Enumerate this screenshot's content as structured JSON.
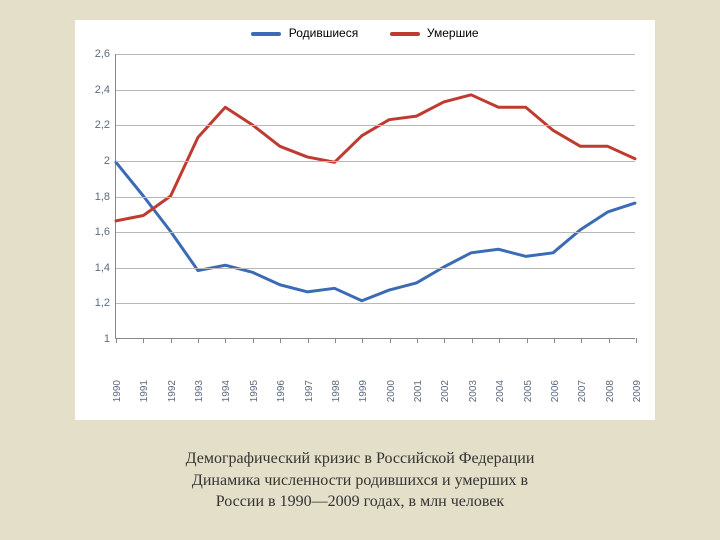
{
  "background_color": "#e3dfc9",
  "chart": {
    "type": "line",
    "plot_bg": "#ffffff",
    "grid_color": "#b8b8b8",
    "axis_color": "#888888",
    "tick_font_color": "#5a6a80",
    "tick_fontsize": 11,
    "ylim": [
      1.0,
      2.6
    ],
    "ytick_step": 0.2,
    "yticks": [
      "1",
      "1,2",
      "1,4",
      "1,6",
      "1,8",
      "2",
      "2,2",
      "2,4",
      "2,6"
    ],
    "categories": [
      "1990",
      "1991",
      "1992",
      "1993",
      "1994",
      "1995",
      "1996",
      "1997",
      "1998",
      "1999",
      "2000",
      "2001",
      "2002",
      "2003",
      "2004",
      "2005",
      "2006",
      "2007",
      "2008",
      "2009"
    ],
    "line_width": 3,
    "legend": {
      "position": "top-center",
      "fontsize": 12,
      "text_color": "#333333"
    },
    "series": [
      {
        "name": "Родившиеся",
        "color": "#3b6bb5",
        "values": [
          1.99,
          1.8,
          1.6,
          1.38,
          1.41,
          1.37,
          1.3,
          1.26,
          1.28,
          1.21,
          1.27,
          1.31,
          1.4,
          1.48,
          1.5,
          1.46,
          1.48,
          1.61,
          1.71,
          1.76
        ]
      },
      {
        "name": "Умершие",
        "color": "#bf3b30",
        "values": [
          1.66,
          1.69,
          1.8,
          2.13,
          2.3,
          2.2,
          2.08,
          2.02,
          1.99,
          2.14,
          2.23,
          2.25,
          2.33,
          2.37,
          2.3,
          2.3,
          2.17,
          2.08,
          2.08,
          2.01
        ]
      }
    ]
  },
  "caption": {
    "line1": "Демографический кризис в Российской Федерации",
    "line2": "Динамика численности родившихся и умерших в",
    "line3": "России в 1990—2009 годах, в млн человек",
    "fontsize": 16,
    "font_family": "Georgia, serif",
    "color": "#333333"
  }
}
